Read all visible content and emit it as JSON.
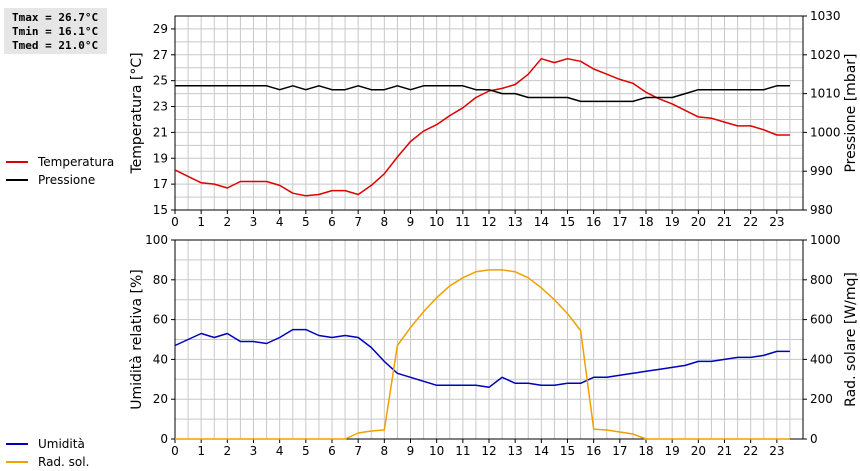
{
  "stats": {
    "tmax": "Tmax = 26.7°C",
    "tmin": "Tmin = 16.1°C",
    "tmed": "Tmed = 21.0°C"
  },
  "colors": {
    "temperature": "#dd0000",
    "pressure": "#000000",
    "humidity": "#0000bb",
    "radiation": "#f0a000",
    "grid": "#c8c8c8"
  },
  "chart_data": [
    {
      "type": "line",
      "x_ticks": [
        "0",
        "1",
        "2",
        "3",
        "4",
        "5",
        "6",
        "7",
        "8",
        "9",
        "10",
        "11",
        "12",
        "13",
        "14",
        "15",
        "16",
        "17",
        "18",
        "19",
        "20",
        "21",
        "22",
        "23"
      ],
      "xlim": [
        0,
        24
      ],
      "ylabel": "Temperatura [°C]",
      "ylabel_right": "Pressione [mbar]",
      "ylim": [
        15,
        30
      ],
      "y_ticks": [
        "15",
        "17",
        "19",
        "21",
        "23",
        "25",
        "27",
        "29"
      ],
      "ylim_right": [
        980,
        1030
      ],
      "y_ticks_right": [
        "980",
        "990",
        "1000",
        "1010",
        "1020",
        "1030"
      ],
      "series": [
        {
          "name": "Temperatura",
          "axis": "left",
          "x": [
            0,
            0.5,
            1,
            1.5,
            2,
            2.5,
            3,
            3.5,
            4,
            4.5,
            5,
            5.5,
            6,
            6.5,
            7,
            7.5,
            8,
            8.5,
            9,
            9.5,
            10,
            10.5,
            11,
            11.5,
            12,
            12.5,
            13,
            13.5,
            14,
            14.5,
            15,
            15.5,
            16,
            16.5,
            17,
            17.5,
            18,
            18.5,
            19,
            19.5,
            20,
            20.5,
            21,
            21.5,
            22,
            22.5,
            23,
            23.5
          ],
          "y": [
            18.1,
            17.6,
            17.1,
            17.0,
            16.7,
            17.2,
            17.2,
            17.2,
            16.9,
            16.3,
            16.1,
            16.2,
            16.5,
            16.5,
            16.2,
            16.9,
            17.8,
            19.1,
            20.3,
            21.1,
            21.6,
            22.3,
            22.9,
            23.7,
            24.2,
            24.4,
            24.7,
            25.5,
            26.7,
            26.4,
            26.7,
            26.5,
            25.9,
            25.5,
            25.1,
            24.8,
            24.1,
            23.6,
            23.2,
            22.7,
            22.2,
            22.1,
            21.8,
            21.5,
            21.5,
            21.2,
            20.8,
            20.8
          ]
        },
        {
          "name": "Pressione",
          "axis": "right",
          "x": [
            0,
            0.5,
            1,
            1.5,
            2,
            2.5,
            3,
            3.5,
            4,
            4.5,
            5,
            5.5,
            6,
            6.5,
            7,
            7.5,
            8,
            8.5,
            9,
            9.5,
            10,
            10.5,
            11,
            11.5,
            12,
            12.5,
            13,
            13.5,
            14,
            14.5,
            15,
            15.5,
            16,
            16.5,
            17,
            17.5,
            18,
            18.5,
            19,
            19.5,
            20,
            20.5,
            21,
            21.5,
            22,
            22.5,
            23,
            23.5
          ],
          "y": [
            1012,
            1012,
            1012,
            1012,
            1012,
            1012,
            1012,
            1012,
            1011,
            1012,
            1011,
            1012,
            1011,
            1011,
            1012,
            1011,
            1011,
            1012,
            1011,
            1012,
            1012,
            1012,
            1012,
            1011,
            1011,
            1010,
            1010,
            1009,
            1009,
            1009,
            1009,
            1008,
            1008,
            1008,
            1008,
            1008,
            1009,
            1009,
            1009,
            1010,
            1011,
            1011,
            1011,
            1011,
            1011,
            1011,
            1012,
            1012
          ]
        }
      ]
    },
    {
      "type": "line",
      "x_ticks": [
        "0",
        "1",
        "2",
        "3",
        "4",
        "5",
        "6",
        "7",
        "8",
        "9",
        "10",
        "11",
        "12",
        "13",
        "14",
        "15",
        "16",
        "17",
        "18",
        "19",
        "20",
        "21",
        "22",
        "23"
      ],
      "xlim": [
        0,
        24
      ],
      "ylabel": "Umidità relativa [%]",
      "ylabel_right": "Rad. solare [W/mq]",
      "ylim": [
        0,
        100
      ],
      "y_ticks": [
        "0",
        "20",
        "40",
        "60",
        "80",
        "100"
      ],
      "ylim_right": [
        0,
        1000
      ],
      "y_ticks_right": [
        "0",
        "200",
        "400",
        "600",
        "800",
        "1000"
      ],
      "series": [
        {
          "name": "Umidità",
          "axis": "left",
          "x": [
            0,
            0.5,
            1,
            1.5,
            2,
            2.5,
            3,
            3.5,
            4,
            4.5,
            5,
            5.5,
            6,
            6.5,
            7,
            7.5,
            8,
            8.5,
            9,
            9.5,
            10,
            10.5,
            11,
            11.5,
            12,
            12.5,
            13,
            13.5,
            14,
            14.5,
            15,
            15.5,
            16,
            16.5,
            17,
            17.5,
            18,
            18.5,
            19,
            19.5,
            20,
            20.5,
            21,
            21.5,
            22,
            22.5,
            23,
            23.5
          ],
          "y": [
            47,
            50,
            53,
            51,
            53,
            49,
            49,
            48,
            51,
            55,
            55,
            52,
            51,
            52,
            51,
            46,
            39,
            33,
            31,
            29,
            27,
            27,
            27,
            27,
            26,
            31,
            28,
            28,
            27,
            27,
            28,
            28,
            31,
            31,
            32,
            33,
            34,
            35,
            36,
            37,
            39,
            39,
            40,
            41,
            41,
            42,
            44,
            44
          ]
        },
        {
          "name": "Rad. sol.",
          "axis": "right",
          "x": [
            0,
            1,
            2,
            3,
            4,
            5,
            6,
            6.5,
            7,
            7.5,
            8,
            8.5,
            9,
            9.5,
            10,
            10.5,
            11,
            11.5,
            12,
            12.5,
            13,
            13.5,
            14,
            14.5,
            15,
            15.5,
            16,
            16.5,
            17,
            17.5,
            18,
            19,
            20,
            21,
            22,
            23,
            23.5
          ],
          "y": [
            0,
            0,
            0,
            0,
            0,
            0,
            0,
            0,
            30,
            40,
            45,
            470,
            560,
            640,
            710,
            770,
            810,
            840,
            850,
            850,
            840,
            810,
            760,
            700,
            630,
            545,
            50,
            45,
            35,
            25,
            0,
            0,
            0,
            0,
            0,
            0,
            0
          ]
        }
      ]
    }
  ]
}
